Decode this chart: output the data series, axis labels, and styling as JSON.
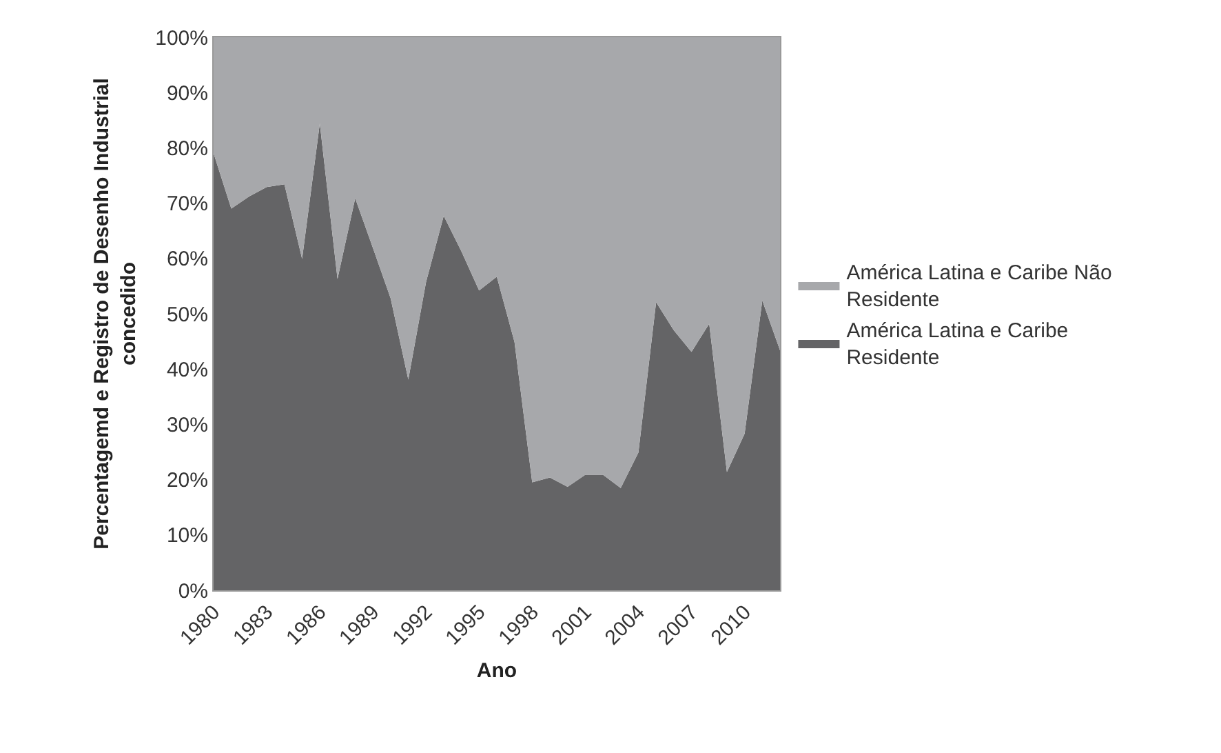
{
  "chart_data": {
    "type": "area",
    "stacked": true,
    "xlabel": "Ano",
    "ylabel": "Percentagemd e Registro de Desenho Industrial concedido",
    "x": [
      1980,
      1981,
      1982,
      1983,
      1984,
      1985,
      1986,
      1987,
      1988,
      1989,
      1990,
      1991,
      1992,
      1993,
      1994,
      1995,
      1996,
      1997,
      1998,
      1999,
      2000,
      2001,
      2002,
      2003,
      2004,
      2005,
      2006,
      2007,
      2008,
      2009,
      2010,
      2011,
      2012
    ],
    "series": [
      {
        "name": "América Latina e Caribe Residente",
        "color": "#646466",
        "values": [
          79.0,
          69.0,
          71.2,
          72.9,
          73.4,
          59.9,
          84.4,
          56.3,
          70.9,
          61.9,
          52.8,
          38.1,
          55.7,
          67.7,
          61.3,
          54.2,
          56.7,
          44.9,
          19.5,
          20.4,
          18.7,
          20.9,
          20.9,
          18.5,
          24.9,
          52.1,
          47.0,
          43.1,
          48.2,
          21.4,
          28.3,
          52.4,
          43.4
        ]
      },
      {
        "name": "América Latina e Caribe Não Residente",
        "color": "#a7a8ab",
        "values": [
          21.0,
          31.0,
          28.8,
          27.1,
          26.6,
          40.1,
          15.6,
          43.7,
          29.1,
          38.1,
          47.2,
          61.9,
          44.3,
          32.3,
          38.7,
          45.8,
          43.3,
          55.1,
          80.5,
          79.6,
          81.3,
          79.1,
          79.1,
          81.5,
          75.1,
          47.9,
          53.0,
          56.9,
          51.8,
          78.6,
          71.7,
          47.6,
          56.6
        ]
      }
    ],
    "xlim": [
      1980,
      2012
    ],
    "xticks": [
      1980,
      1983,
      1986,
      1989,
      1992,
      1995,
      1998,
      2001,
      2004,
      2007,
      2010
    ],
    "ylim": [
      0,
      100
    ],
    "yticks": [
      {
        "value": 0,
        "label": "0%"
      },
      {
        "value": 10,
        "label": "10%"
      },
      {
        "value": 20,
        "label": "20%"
      },
      {
        "value": 30,
        "label": "30%"
      },
      {
        "value": 40,
        "label": "40%"
      },
      {
        "value": 50,
        "label": "50%"
      },
      {
        "value": 60,
        "label": "60%"
      },
      {
        "value": 70,
        "label": "70%"
      },
      {
        "value": 80,
        "label": "80%"
      },
      {
        "value": 90,
        "label": "90%"
      },
      {
        "value": 100,
        "label": "100%"
      }
    ],
    "legend": "right"
  }
}
